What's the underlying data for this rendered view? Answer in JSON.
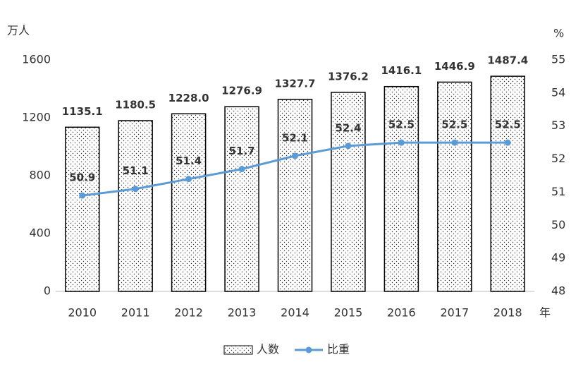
{
  "chart_data": {
    "type": "bar",
    "y_unit": "万人",
    "y2_unit": "%",
    "x_unit": "年",
    "categories": [
      "2010",
      "2011",
      "2012",
      "2013",
      "2014",
      "2015",
      "2016",
      "2017",
      "2018"
    ],
    "series": [
      {
        "name": "人数",
        "type": "bar",
        "color": "#000000",
        "values": [
          1135.1,
          1180.5,
          1228.0,
          1276.9,
          1327.7,
          1376.2,
          1416.1,
          1446.9,
          1487.4
        ],
        "value_labels": [
          "1135.1",
          "1180.5",
          "1228.0",
          "1276.9",
          "1327.7",
          "1376.2",
          "1416.1",
          "1446.9",
          "1487.4"
        ]
      },
      {
        "name": "比重",
        "type": "line",
        "axis": "y2",
        "color": "#5b9bd5",
        "values": [
          50.9,
          51.1,
          51.4,
          51.7,
          52.1,
          52.4,
          52.5,
          52.5,
          52.5
        ]
      }
    ],
    "ylim": [
      0,
      1600
    ],
    "yticks": [
      0,
      400,
      800,
      1200,
      1600
    ],
    "y2lim": [
      48,
      55
    ],
    "y2ticks": [
      48,
      49,
      50,
      51,
      52,
      53,
      54,
      55
    ],
    "legend": "bottom"
  }
}
